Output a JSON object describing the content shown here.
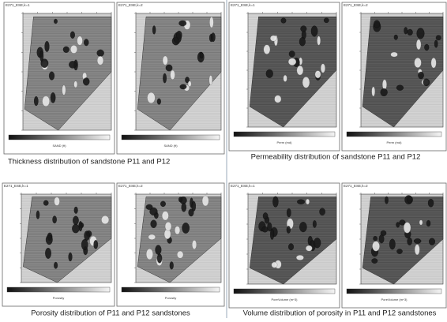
{
  "figure": {
    "panels": [
      {
        "maps": [
          {
            "tag": "E271_ESE,k=1",
            "colorbar_title": "SAND (ft)"
          },
          {
            "tag": "E271_ESE,k=2",
            "colorbar_title": "SAND (ft)"
          }
        ],
        "caption": "Thickness distribution of sandstone P11 and P12"
      },
      {
        "maps": [
          {
            "tag": "E271_ESE,k=1",
            "colorbar_title": "Perm (md)"
          },
          {
            "tag": "E271_ESE,k=2",
            "colorbar_title": "Perm (md)"
          }
        ],
        "caption": "Permeability distribution of sandstone P11 and P12"
      },
      {
        "maps": [
          {
            "tag": "E271_ESE,k=1",
            "colorbar_title": "Porosity"
          },
          {
            "tag": "E271_ESE,k=2",
            "colorbar_title": "Porosity"
          }
        ],
        "caption": "Porosity distribution of P11 and P12 sandstones"
      },
      {
        "maps": [
          {
            "tag": "E271_ESE,k=1",
            "colorbar_title": "PoreVolume (m^3)"
          },
          {
            "tag": "E271_ESE,k=2",
            "colorbar_title": "PoreVolume (m^3)"
          }
        ],
        "caption": "Volume distribution of porosity in P11 and P12 sandstones"
      }
    ]
  }
}
